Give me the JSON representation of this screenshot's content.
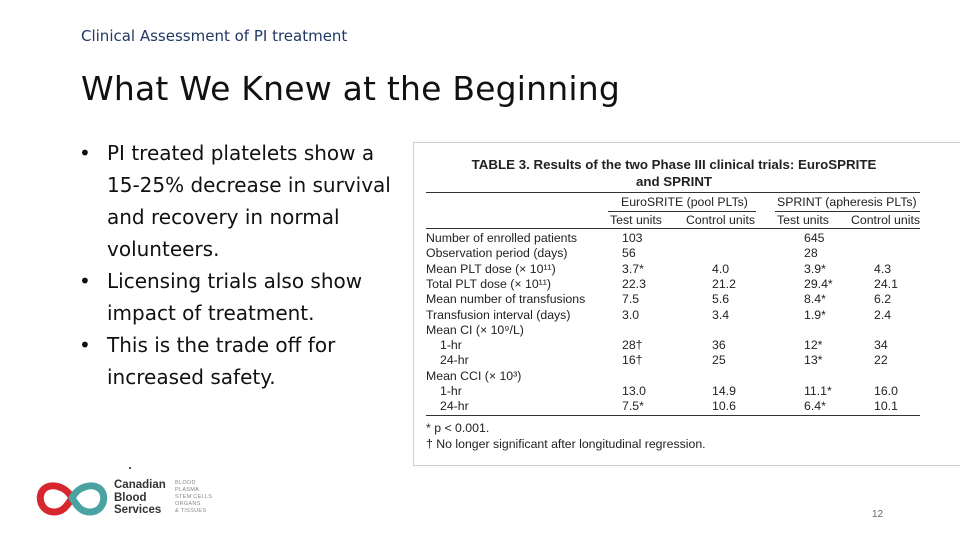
{
  "slide": {
    "kicker": "Clinical Assessment of PI treatment",
    "title": "What We Knew at the Beginning",
    "bullets": [
      "PI treated platelets show a 15-25% decrease in survival and recovery in normal volunteers.",
      "Licensing trials also show impact of treatment.",
      "This is the trade off for increased safety."
    ],
    "page_number": "12"
  },
  "table": {
    "caption_line1": "TABLE 3. Results of the two Phase III clinical trials: EuroSPRITE",
    "caption_line2": "and SPRINT",
    "group_headers": [
      "EuroSRITE (pool PLTs)",
      "SPRINT (apheresis PLTs)"
    ],
    "sub_headers": [
      "Test units",
      "Control units",
      "Test units",
      "Control units"
    ],
    "rows": [
      {
        "label": "Number of enrolled patients",
        "indent": false,
        "es_test": "103",
        "es_control": "",
        "sp_test": "645",
        "sp_control": ""
      },
      {
        "label": "Observation period (days)",
        "indent": false,
        "es_test": "56",
        "es_control": "",
        "sp_test": "28",
        "sp_control": ""
      },
      {
        "label": "Mean PLT dose (× 10¹¹)",
        "indent": false,
        "es_test": "3.7*",
        "es_control": "4.0",
        "sp_test": "3.9*",
        "sp_control": "4.3"
      },
      {
        "label": "Total PLT dose (× 10¹¹)",
        "indent": false,
        "es_test": "22.3",
        "es_control": "21.2",
        "sp_test": "29.4*",
        "sp_control": "24.1"
      },
      {
        "label": "Mean number of transfusions",
        "indent": false,
        "es_test": "7.5",
        "es_control": "5.6",
        "sp_test": "8.4*",
        "sp_control": "6.2"
      },
      {
        "label": "Transfusion interval (days)",
        "indent": false,
        "es_test": "3.0",
        "es_control": "3.4",
        "sp_test": "1.9*",
        "sp_control": "2.4"
      },
      {
        "label": "Mean CI (× 10⁹/L)",
        "indent": false,
        "es_test": "",
        "es_control": "",
        "sp_test": "",
        "sp_control": ""
      },
      {
        "label": "1-hr",
        "indent": true,
        "es_test": "28†",
        "es_control": "36",
        "sp_test": "12*",
        "sp_control": "34"
      },
      {
        "label": "24-hr",
        "indent": true,
        "es_test": "16†",
        "es_control": "25",
        "sp_test": "13*",
        "sp_control": "22"
      },
      {
        "label": "Mean CCI (× 10³)",
        "indent": false,
        "es_test": "",
        "es_control": "",
        "sp_test": "",
        "sp_control": ""
      },
      {
        "label": "1-hr",
        "indent": true,
        "es_test": "13.0",
        "es_control": "14.9",
        "sp_test": "11.1*",
        "sp_control": "16.0"
      },
      {
        "label": "24-hr",
        "indent": true,
        "es_test": "7.5*",
        "es_control": "10.6",
        "sp_test": "6.4*",
        "sp_control": "10.1"
      }
    ],
    "footnotes": [
      "*  p < 0.001.",
      "†  No longer significant after longitudinal regression."
    ]
  },
  "logo": {
    "name_lines": [
      "Canadian",
      "Blood",
      "Services"
    ],
    "tag_lines": [
      "BLOOD",
      "PLASMA",
      "STEM CELLS",
      "ORGANS",
      "& TISSUES"
    ],
    "colors": {
      "red": "#d7262e",
      "teal": "#4aa3a0",
      "dark": "#333333"
    }
  }
}
